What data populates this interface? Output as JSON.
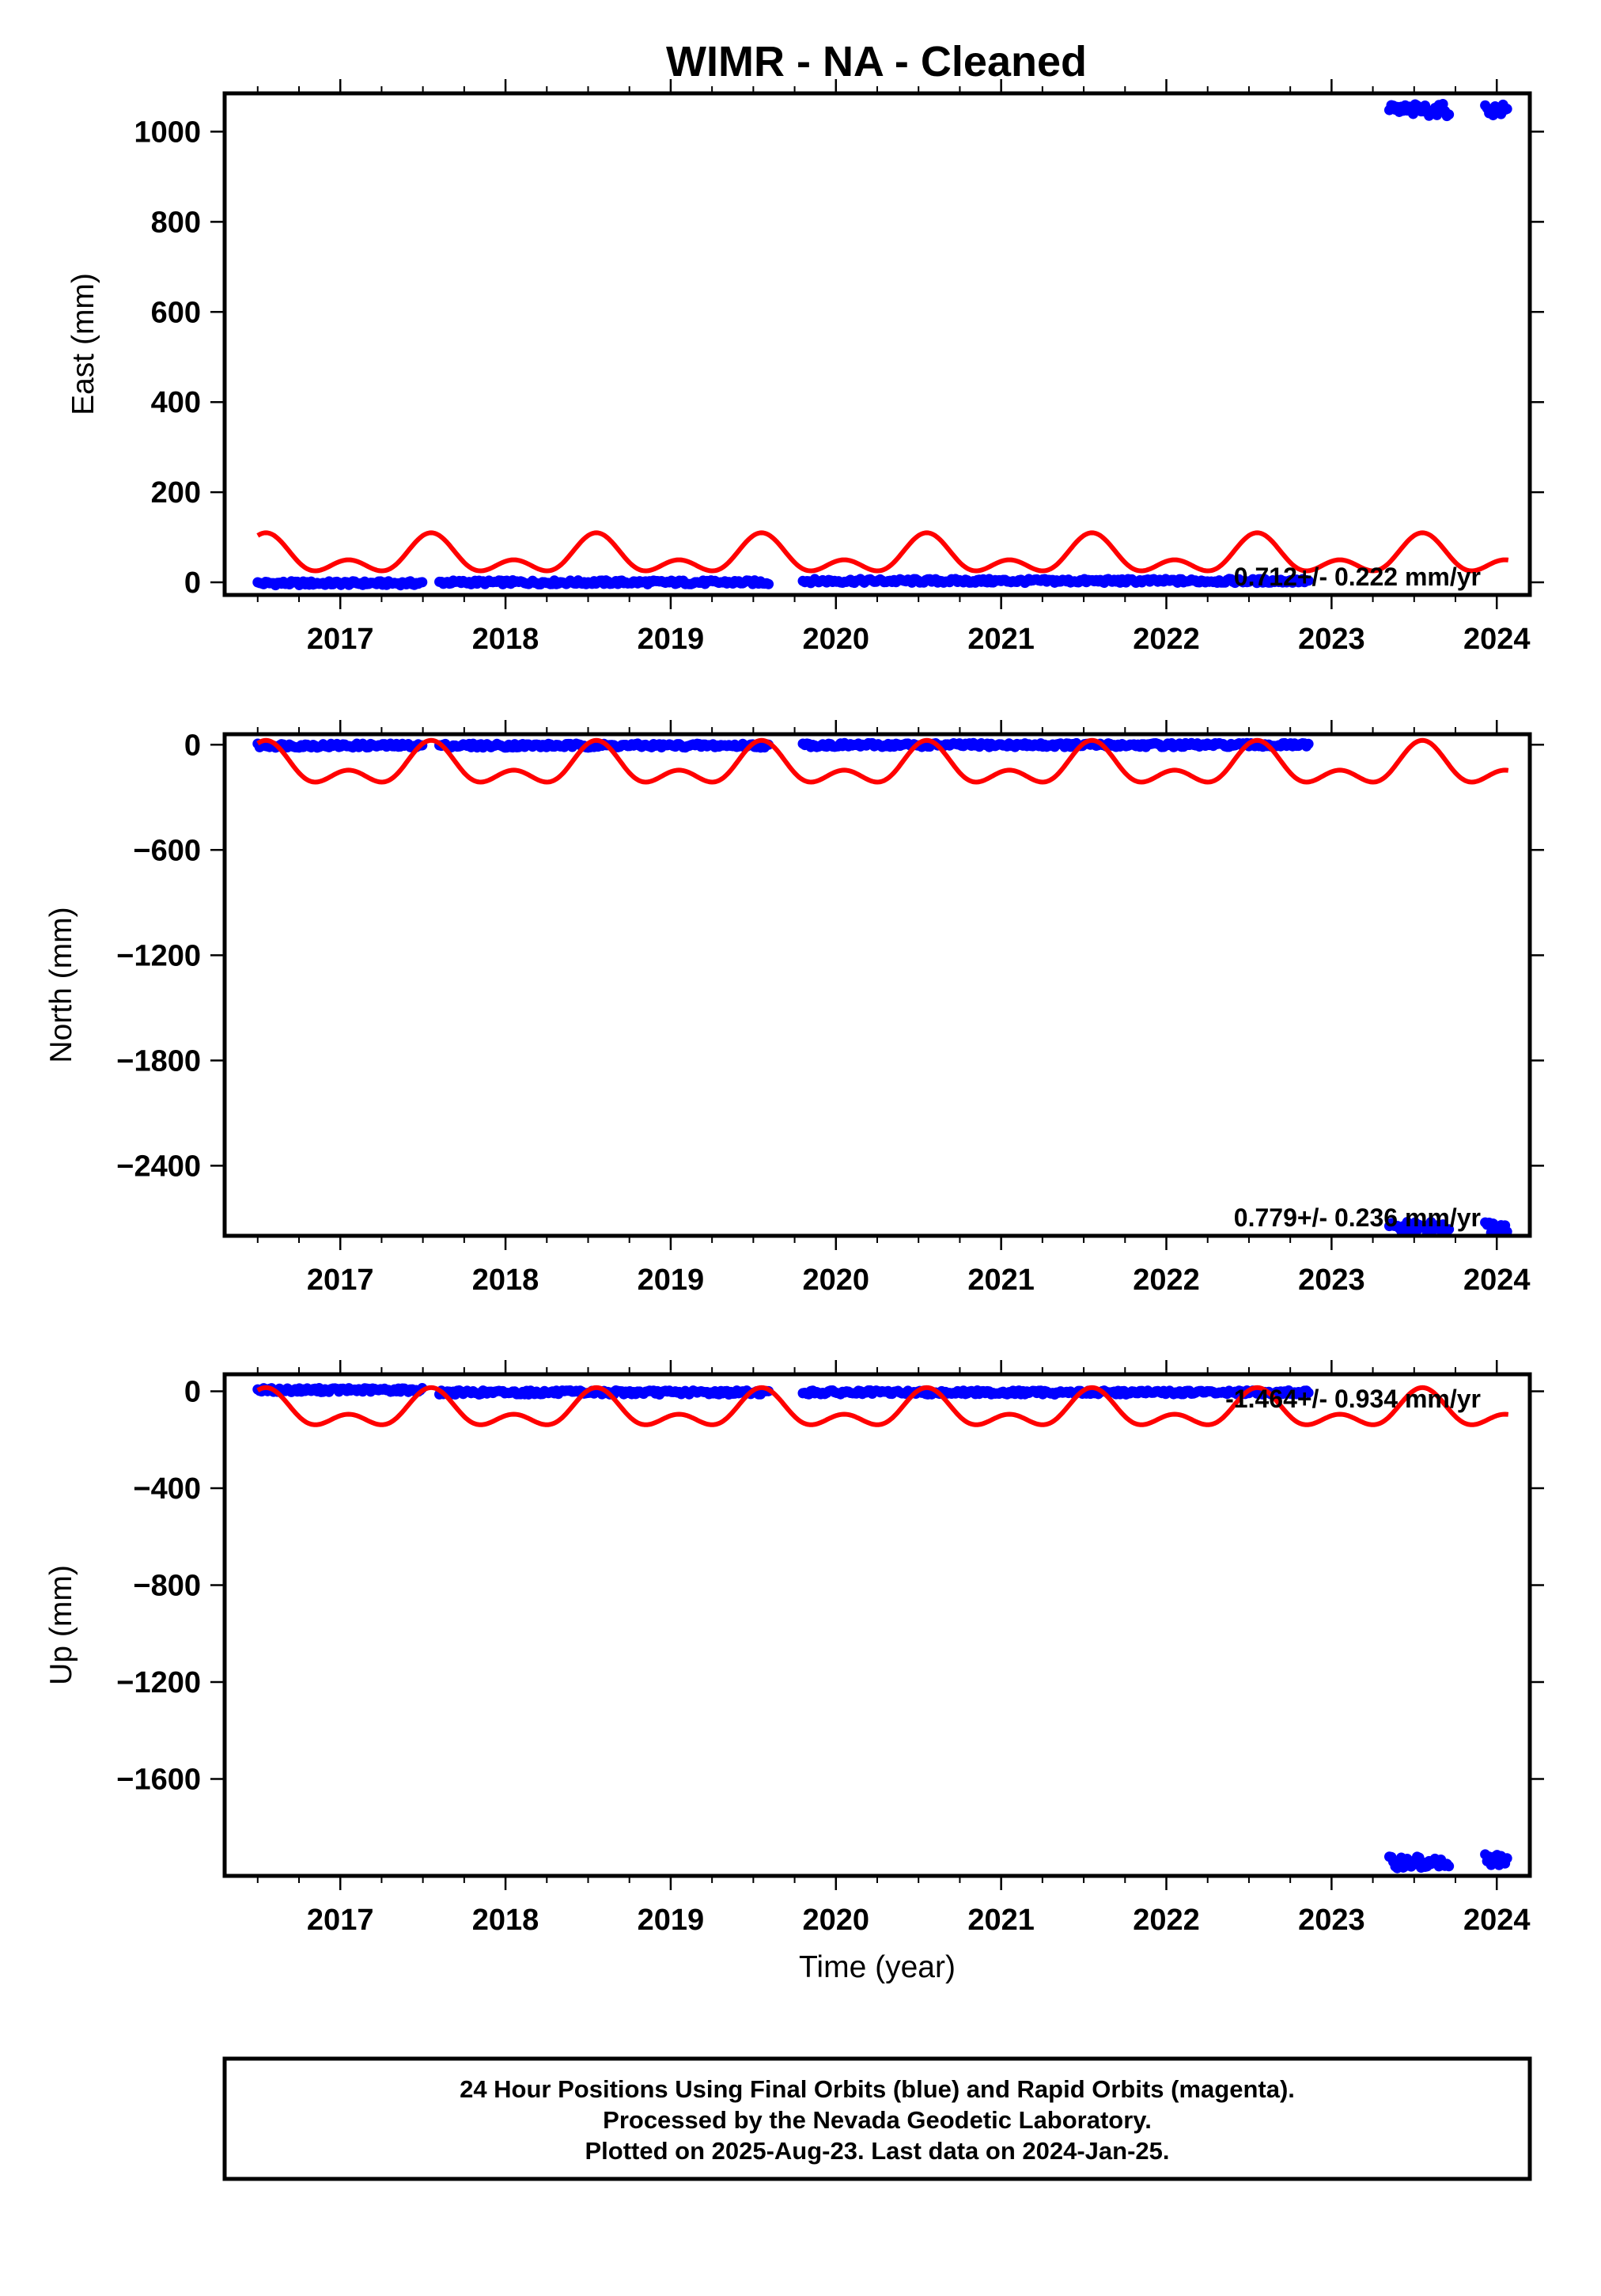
{
  "title": "WIMR  - NA - Cleaned",
  "footer": {
    "lines": [
      "24 Hour Positions Using Final Orbits (blue) and Rapid Orbits (magenta).",
      "Processed by the Nevada Geodetic Laboratory.",
      "Plotted on 2025-Aug-23. Last data on 2024-Jan-25."
    ]
  },
  "colors": {
    "data": "#0000ff",
    "model": "#ff0000",
    "frame": "#000000"
  },
  "chart_data": [
    {
      "type": "scatter",
      "ylabel": "East (mm)",
      "xlabel": "",
      "xlim": [
        2016.3,
        2024.2
      ],
      "ylim": [
        -28,
        1085
      ],
      "xticks": [
        2017,
        2018,
        2019,
        2020,
        2021,
        2022,
        2023,
        2024
      ],
      "yticks": [
        0,
        200,
        400,
        600,
        800,
        1000
      ],
      "rate_label": "0.712+/- 0.222 mm/yr",
      "series": [
        {
          "role": "final-orbit-positions",
          "segments": [
            {
              "x_start": 2016.5,
              "x_end": 2017.5,
              "y": -2
            },
            {
              "x_start": 2017.6,
              "x_end": 2019.6,
              "y": 0
            },
            {
              "x_start": 2019.8,
              "x_end": 2022.87,
              "y": 3
            },
            {
              "x_start": 2023.35,
              "x_end": 2023.72,
              "y": 1048
            },
            {
              "x_start": 2023.93,
              "x_end": 2024.07,
              "y": 1048
            }
          ]
        },
        {
          "role": "seasonal-model",
          "baseline": 55,
          "annual_amplitude": 30,
          "semiannual_amplitude": 25,
          "x_start": 2016.5,
          "x_end": 2024.07
        }
      ]
    },
    {
      "type": "scatter",
      "ylabel": "North (mm)",
      "xlabel": "",
      "xlim": [
        2016.3,
        2024.2
      ],
      "ylim": [
        -2800,
        60
      ],
      "xticks": [
        2017,
        2018,
        2019,
        2020,
        2021,
        2022,
        2023,
        2024
      ],
      "yticks": [
        0,
        -600,
        -1200,
        -1800,
        -2400
      ],
      "rate_label": "0.779+/- 0.236 mm/yr",
      "series": [
        {
          "role": "final-orbit-positions",
          "segments": [
            {
              "x_start": 2016.5,
              "x_end": 2017.5,
              "y": -5
            },
            {
              "x_start": 2017.6,
              "x_end": 2019.6,
              "y": -5
            },
            {
              "x_start": 2019.8,
              "x_end": 2022.87,
              "y": -2
            },
            {
              "x_start": 2023.35,
              "x_end": 2023.72,
              "y": -2755
            },
            {
              "x_start": 2023.93,
              "x_end": 2024.07,
              "y": -2755
            }
          ]
        },
        {
          "role": "seasonal-model",
          "baseline": -130,
          "annual_amplitude": 85,
          "semiannual_amplitude": 70,
          "x_start": 2016.5,
          "x_end": 2024.07
        }
      ]
    },
    {
      "type": "scatter",
      "ylabel": "Up (mm)",
      "xlabel": "Time (year)",
      "xlim": [
        2016.3,
        2024.2
      ],
      "ylim": [
        -2000,
        70
      ],
      "xticks": [
        2017,
        2018,
        2019,
        2020,
        2021,
        2022,
        2023,
        2024
      ],
      "yticks": [
        0,
        -400,
        -800,
        -1200,
        -1600
      ],
      "rate_label": "-1.464+/- 0.934 mm/yr",
      "series": [
        {
          "role": "final-orbit-positions",
          "segments": [
            {
              "x_start": 2016.5,
              "x_end": 2017.5,
              "y": 5
            },
            {
              "x_start": 2017.6,
              "x_end": 2019.6,
              "y": -5
            },
            {
              "x_start": 2019.8,
              "x_end": 2022.87,
              "y": -5
            },
            {
              "x_start": 2023.35,
              "x_end": 2023.72,
              "y": -1945
            },
            {
              "x_start": 2023.93,
              "x_end": 2024.07,
              "y": -1935
            }
          ]
        },
        {
          "role": "seasonal-model",
          "baseline": -85,
          "annual_amplitude": 55,
          "semiannual_amplitude": 45,
          "x_start": 2016.5,
          "x_end": 2024.07
        }
      ]
    }
  ]
}
